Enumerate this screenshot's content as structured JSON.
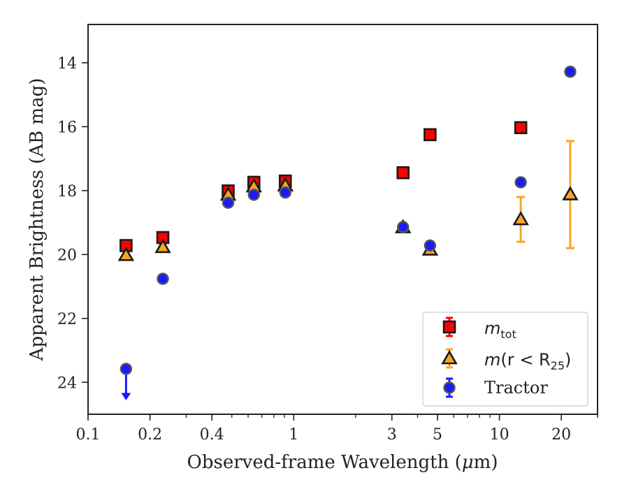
{
  "chart_data": {
    "type": "scatter",
    "title": "",
    "xlabel": "Observed-frame Wavelength",
    "xlabel_unit_prefix": "μ",
    "xlabel_unit_suffix": "m",
    "ylabel": "Apparent Brightness (AB mag)",
    "x_scale": "log",
    "xlim": [
      0.1,
      30
    ],
    "ylim": [
      25,
      12.8
    ],
    "y_inverted": true,
    "x_ticks": [
      0.1,
      0.2,
      0.4,
      1,
      3,
      5,
      10,
      20
    ],
    "x_tick_labels": [
      "0.1",
      "0.2",
      "0.4",
      "1",
      "3",
      "5",
      "10",
      "20"
    ],
    "y_ticks": [
      14,
      16,
      18,
      20,
      22,
      24
    ],
    "y_tick_labels": [
      "14",
      "16",
      "18",
      "20",
      "22",
      "24"
    ],
    "grid": false,
    "legend_position": "lower-right",
    "series": [
      {
        "name_base": "m",
        "name_sub": "tot",
        "marker": "square",
        "color": "#ff0000",
        "edge_color": "#1a1a1a",
        "points": [
          {
            "x": 0.153,
            "y": 19.72
          },
          {
            "x": 0.231,
            "y": 19.47
          },
          {
            "x": 0.48,
            "y": 18.01
          },
          {
            "x": 0.64,
            "y": 17.74
          },
          {
            "x": 0.91,
            "y": 17.7
          },
          {
            "x": 3.4,
            "y": 17.44
          },
          {
            "x": 4.6,
            "y": 16.25
          },
          {
            "x": 12.7,
            "y": 16.03
          }
        ]
      },
      {
        "name_base": "m",
        "name_paren": "(r < R",
        "name_sub": "25",
        "name_close": ")",
        "marker": "triangle",
        "color": "#f5a623",
        "edge_color": "#1a1a1a",
        "points": [
          {
            "x": 0.153,
            "y": 20.02
          },
          {
            "x": 0.231,
            "y": 19.77
          },
          {
            "x": 0.48,
            "y": 18.13
          },
          {
            "x": 0.64,
            "y": 17.87
          },
          {
            "x": 0.91,
            "y": 17.84
          },
          {
            "x": 3.4,
            "y": 19.15
          },
          {
            "x": 4.6,
            "y": 19.85
          },
          {
            "x": 12.7,
            "y": 18.9,
            "yerr": [
              18.2,
              19.6
            ]
          },
          {
            "x": 22.1,
            "y": 18.12,
            "yerr": [
              16.45,
              19.8
            ]
          }
        ]
      },
      {
        "name": "Tractor",
        "marker": "circle",
        "color": "#1a1aff",
        "edge_color": "#555555",
        "points": [
          {
            "x": 0.153,
            "y": 23.58,
            "upper_limit": true
          },
          {
            "x": 0.231,
            "y": 20.76
          },
          {
            "x": 0.48,
            "y": 18.38
          },
          {
            "x": 0.64,
            "y": 18.13
          },
          {
            "x": 0.91,
            "y": 18.06
          },
          {
            "x": 3.4,
            "y": 19.14
          },
          {
            "x": 4.6,
            "y": 19.72
          },
          {
            "x": 12.7,
            "y": 17.74
          },
          {
            "x": 22.1,
            "y": 14.28
          }
        ]
      }
    ]
  }
}
